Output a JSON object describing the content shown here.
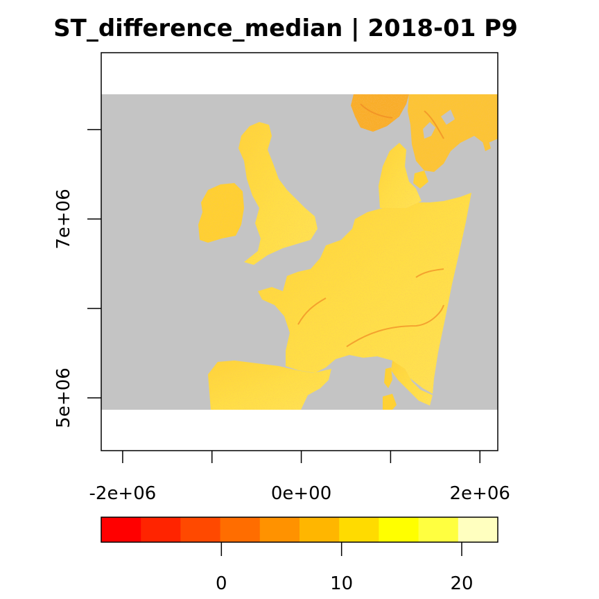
{
  "map": {
    "title": "ST_difference_median | 2018-01 P9",
    "x_ticks": [
      {
        "value": -2000000,
        "label": "-2e+06"
      },
      {
        "value": -1000000,
        "label": ""
      },
      {
        "value": 0,
        "label": "0e+00"
      },
      {
        "value": 1000000,
        "label": ""
      },
      {
        "value": 2000000,
        "label": "2e+06"
      }
    ],
    "y_ticks": [
      {
        "value": 5000000,
        "label": "5e+06"
      },
      {
        "value": 6000000,
        "label": ""
      },
      {
        "value": 7000000,
        "label": "7e+06"
      },
      {
        "value": 8000000,
        "label": ""
      }
    ],
    "xlim": [
      -2240000,
      2200000
    ],
    "ylim": [
      4410000,
      8860000
    ],
    "raster_extent": {
      "x": [
        -2240000,
        2200000
      ],
      "y": [
        4860000,
        8400000
      ]
    },
    "no_data_color": "#C4C4C4",
    "land_palette": [
      "#FFE24A",
      "#FFD436",
      "#FFC11C",
      "#F9A31E",
      "#EE7A22"
    ]
  },
  "legend": {
    "range": [
      -10,
      23
    ],
    "colors": [
      "#FF0000",
      "#FF2400",
      "#FF4900",
      "#FF6D00",
      "#FF9200",
      "#FFB600",
      "#FFDB00",
      "#FFFF00",
      "#FFFF40",
      "#FFFFBF"
    ],
    "ticks": [
      {
        "value": 0,
        "label": "0"
      },
      {
        "value": 10,
        "label": "10"
      },
      {
        "value": 20,
        "label": "20"
      }
    ]
  }
}
